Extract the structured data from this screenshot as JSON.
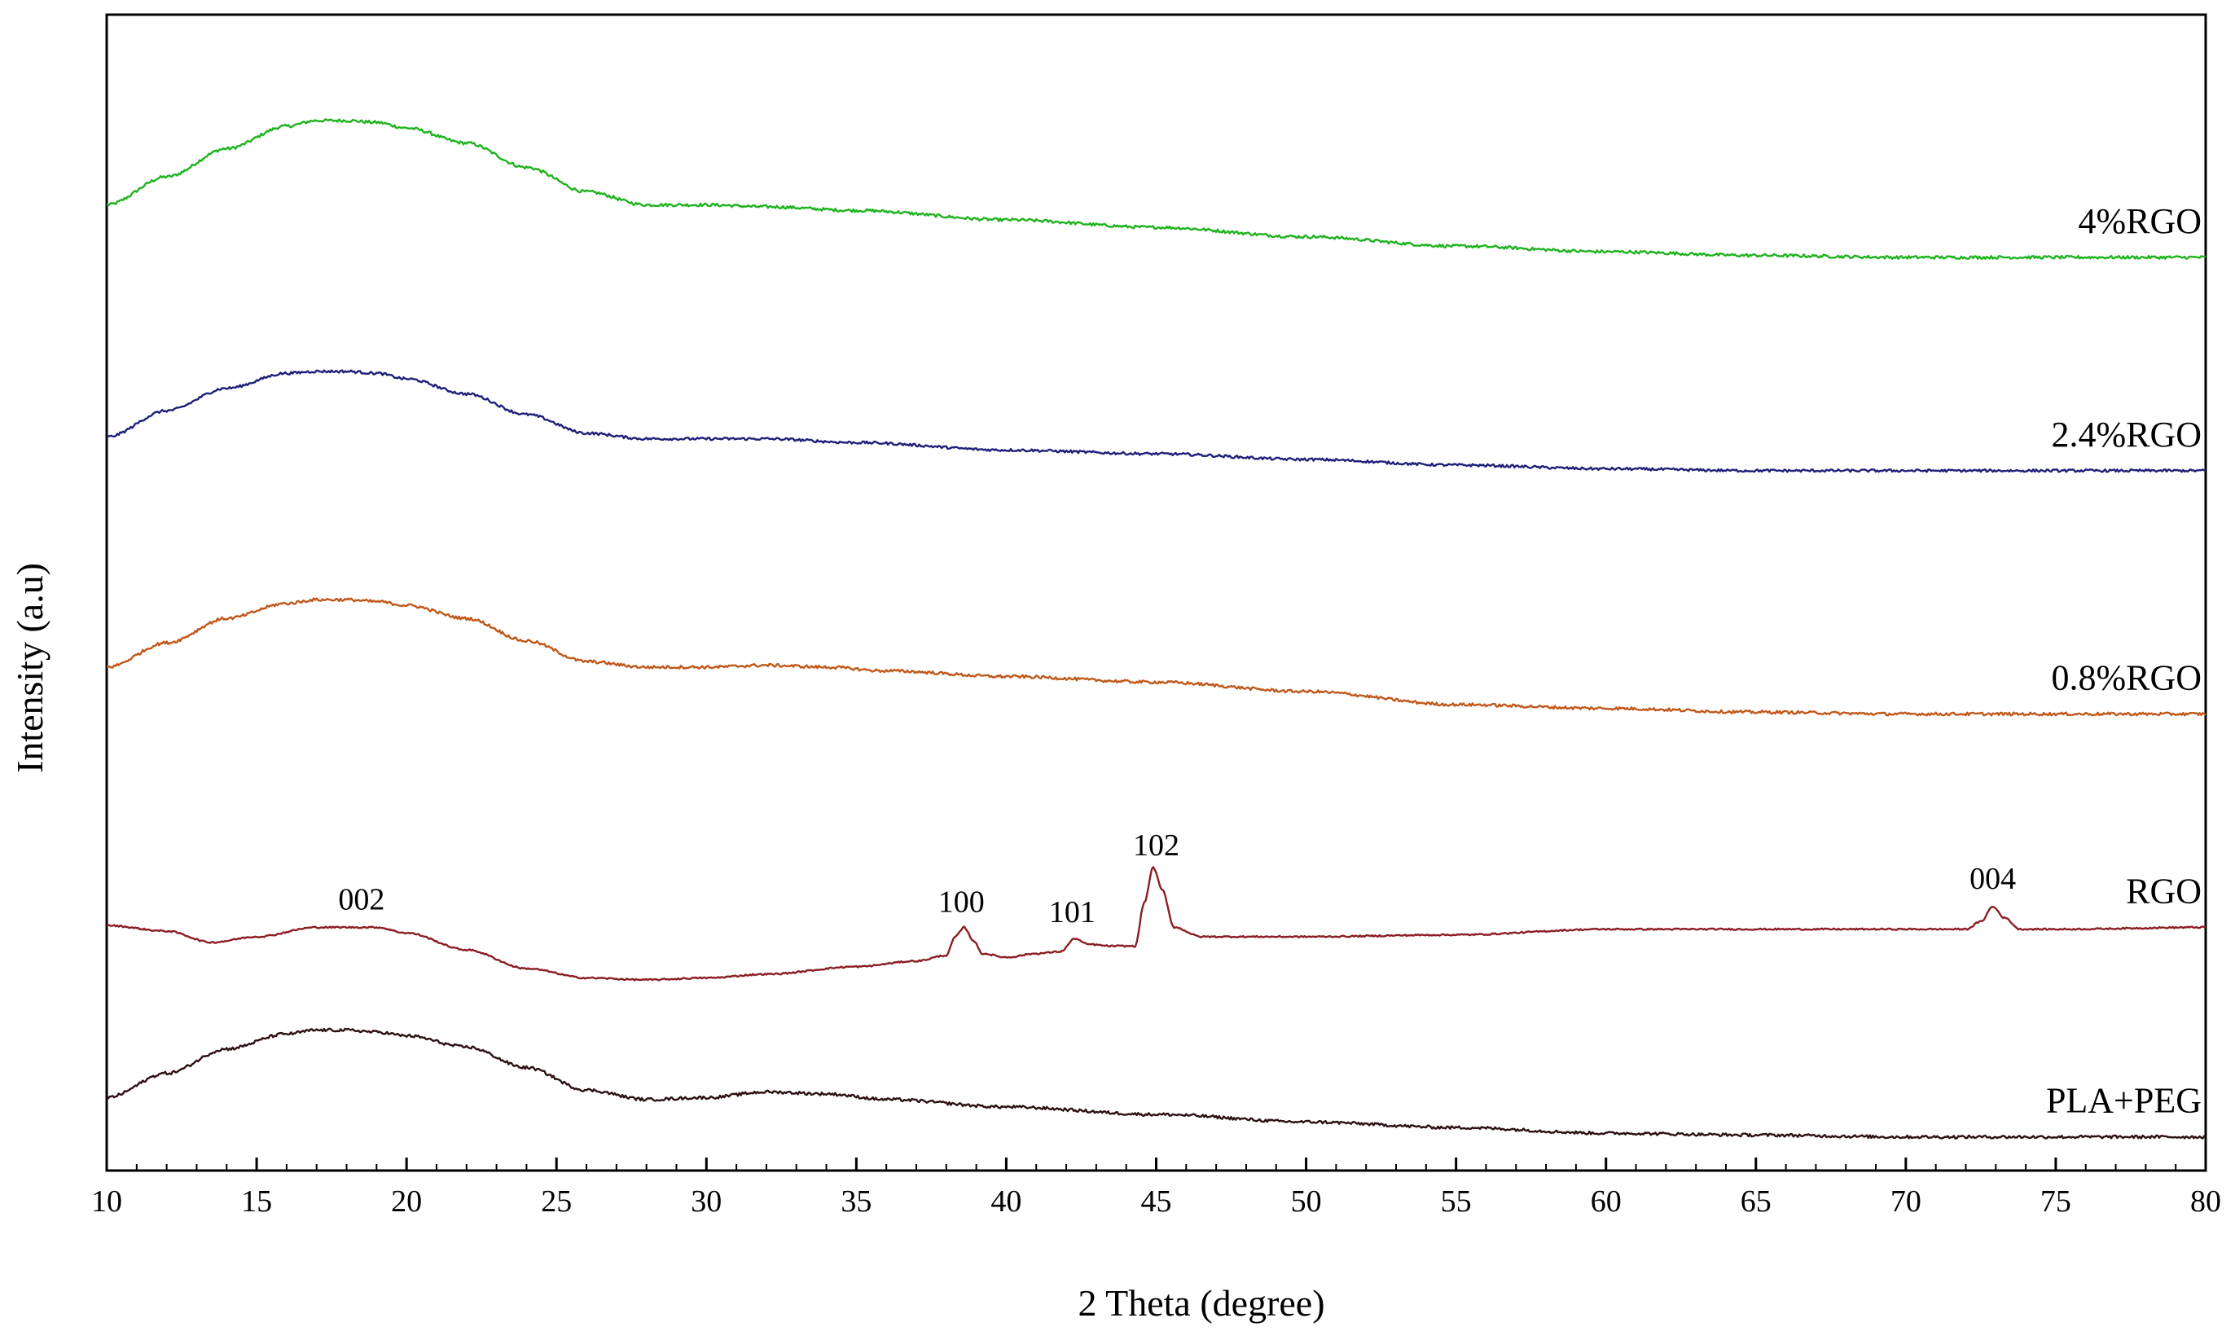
{
  "chart_data": {
    "type": "line",
    "title": "",
    "xlabel": "2 Theta (degree)",
    "ylabel": "Intensity (a.u)",
    "xlim": [
      10,
      80
    ],
    "xticks": [
      10,
      15,
      20,
      25,
      30,
      35,
      40,
      45,
      50,
      55,
      60,
      65,
      70,
      75,
      80
    ],
    "yticks_shown": false,
    "grid": false,
    "legend": "inline labels at right end of each curve",
    "series": [
      {
        "name": "4%RGO",
        "color": "#1eb31e",
        "offset": 4,
        "points": [
          [
            10,
            0.55
          ],
          [
            12,
            0.7
          ],
          [
            14,
            0.85
          ],
          [
            16,
            0.97
          ],
          [
            17,
            1.0
          ],
          [
            18,
            1.0
          ],
          [
            19,
            0.99
          ],
          [
            20,
            0.96
          ],
          [
            22,
            0.88
          ],
          [
            24,
            0.75
          ],
          [
            26,
            0.62
          ],
          [
            28,
            0.55
          ],
          [
            29,
            0.55
          ],
          [
            30,
            0.55
          ],
          [
            32,
            0.54
          ],
          [
            35,
            0.52
          ],
          [
            40,
            0.47
          ],
          [
            45,
            0.43
          ],
          [
            50,
            0.38
          ],
          [
            55,
            0.33
          ],
          [
            60,
            0.3
          ],
          [
            65,
            0.28
          ],
          [
            70,
            0.27
          ],
          [
            75,
            0.27
          ],
          [
            80,
            0.27
          ]
        ],
        "noise": 0.008
      },
      {
        "name": "2.4%RGO",
        "color": "#1f1f7a",
        "offset": 3,
        "points": [
          [
            10,
            0.42
          ],
          [
            12,
            0.56
          ],
          [
            14,
            0.68
          ],
          [
            16,
            0.76
          ],
          [
            17,
            0.77
          ],
          [
            18,
            0.77
          ],
          [
            19,
            0.76
          ],
          [
            20,
            0.73
          ],
          [
            22,
            0.65
          ],
          [
            24,
            0.54
          ],
          [
            26,
            0.44
          ],
          [
            28,
            0.41
          ],
          [
            29,
            0.41
          ],
          [
            30,
            0.41
          ],
          [
            32,
            0.41
          ],
          [
            35,
            0.39
          ],
          [
            40,
            0.35
          ],
          [
            45,
            0.33
          ],
          [
            50,
            0.3
          ],
          [
            55,
            0.27
          ],
          [
            60,
            0.25
          ],
          [
            65,
            0.24
          ],
          [
            70,
            0.24
          ],
          [
            75,
            0.24
          ],
          [
            80,
            0.24
          ]
        ],
        "noise": 0.007
      },
      {
        "name": "0.8%RGO",
        "color": "#c0581a",
        "offset": 2,
        "points": [
          [
            10,
            0.3
          ],
          [
            12,
            0.43
          ],
          [
            14,
            0.56
          ],
          [
            16,
            0.64
          ],
          [
            17,
            0.66
          ],
          [
            18,
            0.66
          ],
          [
            19,
            0.65
          ],
          [
            20,
            0.63
          ],
          [
            22,
            0.56
          ],
          [
            24,
            0.44
          ],
          [
            26,
            0.33
          ],
          [
            28,
            0.3
          ],
          [
            30,
            0.3
          ],
          [
            32,
            0.31
          ],
          [
            34,
            0.3
          ],
          [
            36,
            0.28
          ],
          [
            40,
            0.25
          ],
          [
            45,
            0.22
          ],
          [
            50,
            0.17
          ],
          [
            55,
            0.1
          ],
          [
            60,
            0.08
          ],
          [
            65,
            0.06
          ],
          [
            70,
            0.05
          ],
          [
            75,
            0.05
          ],
          [
            80,
            0.05
          ]
        ],
        "noise": 0.008
      },
      {
        "name": "RGO",
        "color": "#8b1d22",
        "offset": 1,
        "points": [
          [
            10,
            0.03
          ],
          [
            12,
            0.0
          ],
          [
            13.5,
            -0.06
          ],
          [
            15,
            -0.03
          ],
          [
            17,
            0.02
          ],
          [
            18,
            0.02
          ],
          [
            19,
            0.02
          ],
          [
            20,
            -0.01
          ],
          [
            22,
            -0.1
          ],
          [
            24,
            -0.2
          ],
          [
            26,
            -0.25
          ],
          [
            28,
            -0.26
          ],
          [
            30,
            -0.25
          ],
          [
            32,
            -0.23
          ],
          [
            35,
            -0.19
          ],
          [
            37,
            -0.16
          ],
          [
            38,
            -0.13
          ],
          [
            38.3,
            -0.03
          ],
          [
            38.6,
            0.02
          ],
          [
            38.9,
            -0.05
          ],
          [
            39.2,
            -0.12
          ],
          [
            40,
            -0.14
          ],
          [
            41,
            -0.12
          ],
          [
            41.8,
            -0.11
          ],
          [
            42.3,
            -0.04
          ],
          [
            42.7,
            -0.07
          ],
          [
            43.5,
            -0.08
          ],
          [
            44.3,
            -0.08
          ],
          [
            44.6,
            0.15
          ],
          [
            44.9,
            0.34
          ],
          [
            45.2,
            0.22
          ],
          [
            45.6,
            0.02
          ],
          [
            46.5,
            -0.03
          ],
          [
            50,
            -0.03
          ],
          [
            55,
            -0.02
          ],
          [
            60,
            0.01
          ],
          [
            65,
            0.01
          ],
          [
            70,
            0.01
          ],
          [
            72,
            0.01
          ],
          [
            72.5,
            0.05
          ],
          [
            72.9,
            0.13
          ],
          [
            73.3,
            0.07
          ],
          [
            73.8,
            0.01
          ],
          [
            75,
            0.01
          ],
          [
            80,
            0.02
          ]
        ],
        "noise": 0.004,
        "peaks": [
          {
            "label": "002",
            "x": 18.5
          },
          {
            "label": "100",
            "x": 38.5
          },
          {
            "label": "101",
            "x": 42.2
          },
          {
            "label": "102",
            "x": 45.0
          },
          {
            "label": "004",
            "x": 72.9
          }
        ]
      },
      {
        "name": "PLA+PEG",
        "color": "#2e0f12",
        "offset": 0,
        "points": [
          [
            10,
            0.22
          ],
          [
            12,
            0.35
          ],
          [
            14,
            0.48
          ],
          [
            16,
            0.56
          ],
          [
            17,
            0.58
          ],
          [
            18,
            0.58
          ],
          [
            19,
            0.57
          ],
          [
            20,
            0.55
          ],
          [
            22,
            0.49
          ],
          [
            24,
            0.38
          ],
          [
            26,
            0.26
          ],
          [
            28,
            0.21
          ],
          [
            30,
            0.22
          ],
          [
            32,
            0.25
          ],
          [
            34,
            0.24
          ],
          [
            36,
            0.21
          ],
          [
            40,
            0.17
          ],
          [
            45,
            0.13
          ],
          [
            50,
            0.09
          ],
          [
            55,
            0.06
          ],
          [
            60,
            0.03
          ],
          [
            65,
            0.02
          ],
          [
            70,
            0.01
          ],
          [
            75,
            0.01
          ],
          [
            80,
            0.01
          ]
        ],
        "noise": 0.008
      }
    ]
  }
}
